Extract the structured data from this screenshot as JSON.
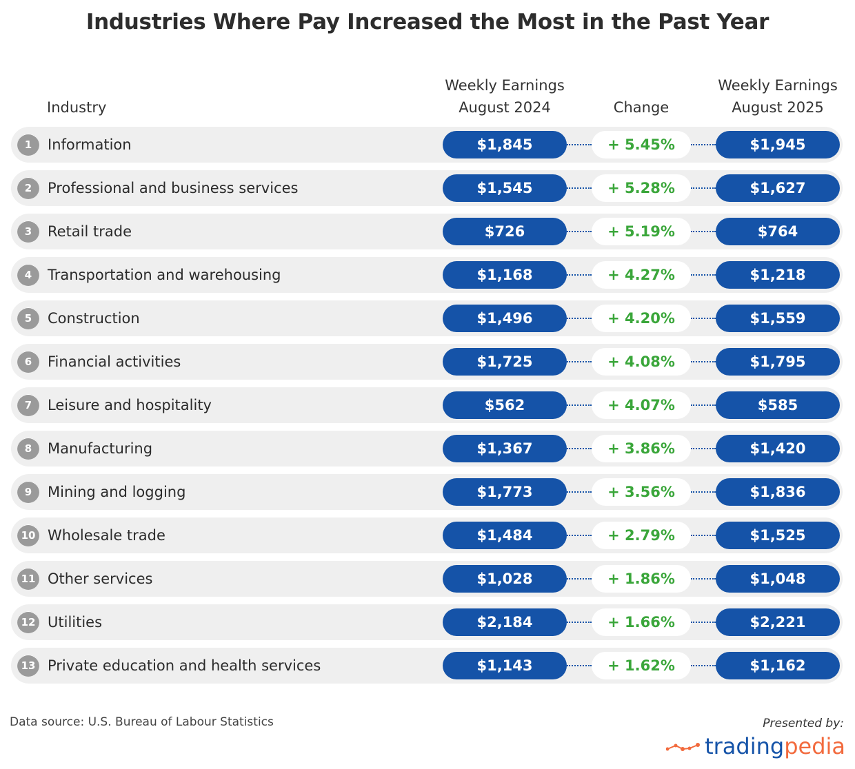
{
  "chart_data": {
    "type": "table",
    "title": "Industries Where Pay Increased the Most in the Past Year",
    "columns": [
      "Industry",
      "Weekly Earnings August 2024",
      "Change",
      "Weekly Earnings August 2025"
    ],
    "rows": [
      {
        "rank": "1",
        "industry": "Information",
        "aug2024": "$1,845",
        "change": "+ 5.45%",
        "aug2025": "$1,945"
      },
      {
        "rank": "2",
        "industry": "Professional and business services",
        "aug2024": "$1,545",
        "change": "+ 5.28%",
        "aug2025": "$1,627"
      },
      {
        "rank": "3",
        "industry": "Retail trade",
        "aug2024": "$726",
        "change": "+ 5.19%",
        "aug2025": "$764"
      },
      {
        "rank": "4",
        "industry": "Transportation and warehousing",
        "aug2024": "$1,168",
        "change": "+ 4.27%",
        "aug2025": "$1,218"
      },
      {
        "rank": "5",
        "industry": "Construction",
        "aug2024": "$1,496",
        "change": "+ 4.20%",
        "aug2025": "$1,559"
      },
      {
        "rank": "6",
        "industry": "Financial activities",
        "aug2024": "$1,725",
        "change": "+ 4.08%",
        "aug2025": "$1,795"
      },
      {
        "rank": "7",
        "industry": "Leisure and hospitality",
        "aug2024": "$562",
        "change": "+ 4.07%",
        "aug2025": "$585"
      },
      {
        "rank": "8",
        "industry": "Manufacturing",
        "aug2024": "$1,367",
        "change": "+ 3.86%",
        "aug2025": "$1,420"
      },
      {
        "rank": "9",
        "industry": "Mining and logging",
        "aug2024": "$1,773",
        "change": "+ 3.56%",
        "aug2025": "$1,836"
      },
      {
        "rank": "10",
        "industry": "Wholesale trade",
        "aug2024": "$1,484",
        "change": "+ 2.79%",
        "aug2025": "$1,525"
      },
      {
        "rank": "11",
        "industry": "Other services",
        "aug2024": "$1,028",
        "change": "+ 1.86%",
        "aug2025": "$1,048"
      },
      {
        "rank": "12",
        "industry": "Utilities",
        "aug2024": "$2,184",
        "change": "+ 1.66%",
        "aug2025": "$2,221"
      },
      {
        "rank": "13",
        "industry": "Private education and health services",
        "aug2024": "$1,143",
        "change": "+ 1.62%",
        "aug2025": "$1,162"
      }
    ]
  },
  "headers": {
    "industry": "Industry",
    "col2_line1": "Weekly Earnings",
    "col2_line2": "August 2024",
    "change": "Change",
    "col4_line1": "Weekly Earnings",
    "col4_line2": "August 2025"
  },
  "footer": {
    "source": "Data source: U.S. Bureau of Labour Statistics",
    "presented_by": "Presented by:",
    "logo_part1": "trading",
    "logo_part2": "pedia"
  },
  "colors": {
    "pill_blue": "#1553a8",
    "change_green": "#3aa63a",
    "row_bg": "#efefef",
    "logo_orange": "#f26a3d"
  }
}
